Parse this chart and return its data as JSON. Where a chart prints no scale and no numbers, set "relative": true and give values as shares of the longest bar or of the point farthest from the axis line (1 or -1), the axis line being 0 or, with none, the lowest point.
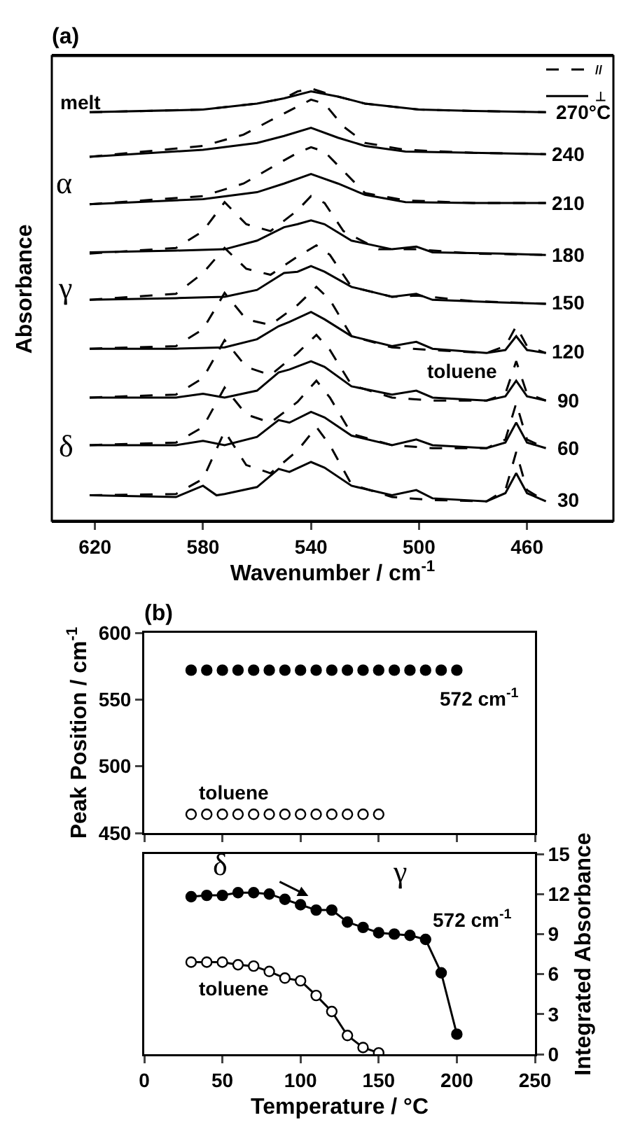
{
  "chart_data": [
    {
      "type": "line",
      "title": "(a)",
      "xlabel": "Wavenumber / cm$^{-1}$",
      "ylabel": "Absorbance",
      "relative": true,
      "xlim": [
        636,
        428
      ],
      "xticks": [
        620,
        580,
        540,
        500,
        460
      ],
      "legend": "top right",
      "grid": false,
      "series": [
        {
          "name": "//",
          "color": "#000000",
          "line_style": "dashed",
          "x": [
            622,
            580,
            560,
            550,
            545,
            540,
            535,
            530,
            520,
            500,
            480,
            453
          ],
          "values": [
            0.945,
            0.951,
            0.965,
            0.977,
            0.993,
            1.0,
            0.99,
            0.981,
            0.965,
            0.951,
            0.948,
            0.945
          ]
        },
        {
          "name": "⊥",
          "color": "#000000",
          "line_style": "solid",
          "x": [
            622,
            580,
            560,
            550,
            540,
            530,
            520,
            500,
            480,
            453
          ],
          "values": [
            0.945,
            0.951,
            0.965,
            0.977,
            0.993,
            0.981,
            0.965,
            0.951,
            0.948,
            0.945
          ]
        },
        {
          "color": "#000000",
          "line_style": "dashed",
          "x": [
            622,
            580,
            565,
            555,
            545,
            540,
            535,
            528,
            520,
            505,
            480,
            453
          ],
          "values": [
            0.842,
            0.867,
            0.893,
            0.926,
            0.958,
            0.974,
            0.965,
            0.912,
            0.874,
            0.858,
            0.851,
            0.848
          ]
        },
        {
          "color": "#000000",
          "line_style": "solid",
          "x": [
            622,
            580,
            560,
            550,
            540,
            530,
            520,
            505,
            480,
            453
          ],
          "values": [
            0.842,
            0.858,
            0.874,
            0.89,
            0.909,
            0.886,
            0.867,
            0.854,
            0.851,
            0.848
          ]
        },
        {
          "color": "#000000",
          "line_style": "dashed",
          "x": [
            622,
            580,
            565,
            555,
            545,
            540,
            535,
            528,
            520,
            505,
            480,
            453
          ],
          "values": [
            0.732,
            0.751,
            0.78,
            0.816,
            0.851,
            0.864,
            0.854,
            0.809,
            0.758,
            0.741,
            0.735,
            0.735
          ]
        },
        {
          "color": "#000000",
          "line_style": "solid",
          "x": [
            622,
            580,
            560,
            550,
            540,
            530,
            520,
            505,
            480,
            453
          ],
          "values": [
            0.732,
            0.744,
            0.76,
            0.78,
            0.802,
            0.78,
            0.754,
            0.737,
            0.735,
            0.735
          ]
        },
        {
          "color": "#000000",
          "line_style": "dashed",
          "x": [
            622,
            590,
            580,
            572,
            564,
            555,
            545,
            540,
            535,
            528,
            515,
            501,
            480,
            453
          ],
          "values": [
            0.618,
            0.631,
            0.67,
            0.737,
            0.686,
            0.67,
            0.718,
            0.751,
            0.735,
            0.67,
            0.628,
            0.628,
            0.618,
            0.615
          ]
        },
        {
          "color": "#000000",
          "line_style": "solid",
          "x": [
            622,
            590,
            572,
            560,
            550,
            545,
            540,
            535,
            525,
            510,
            501,
            495,
            470,
            453
          ],
          "values": [
            0.621,
            0.625,
            0.628,
            0.648,
            0.679,
            0.686,
            0.695,
            0.686,
            0.648,
            0.628,
            0.634,
            0.621,
            0.618,
            0.615
          ]
        },
        {
          "color": "#000000",
          "line_style": "dashed",
          "x": [
            622,
            590,
            580,
            572,
            564,
            555,
            545,
            538,
            533,
            525,
            510,
            501,
            480,
            453
          ],
          "values": [
            0.511,
            0.525,
            0.573,
            0.631,
            0.583,
            0.569,
            0.611,
            0.637,
            0.615,
            0.541,
            0.518,
            0.521,
            0.508,
            0.502
          ]
        },
        {
          "color": "#000000",
          "line_style": "solid",
          "x": [
            622,
            590,
            572,
            560,
            550,
            545,
            540,
            535,
            525,
            510,
            501,
            495,
            470,
            453
          ],
          "values": [
            0.511,
            0.515,
            0.518,
            0.534,
            0.573,
            0.576,
            0.589,
            0.576,
            0.541,
            0.518,
            0.525,
            0.511,
            0.505,
            0.502
          ]
        },
        {
          "color": "#000000",
          "line_style": "dashed",
          "x": [
            622,
            590,
            580,
            572,
            564,
            555,
            545,
            538,
            533,
            525,
            510,
            495,
            475,
            468,
            464,
            460,
            453
          ],
          "values": [
            0.398,
            0.404,
            0.443,
            0.527,
            0.466,
            0.453,
            0.499,
            0.541,
            0.511,
            0.427,
            0.401,
            0.395,
            0.388,
            0.404,
            0.45,
            0.404,
            0.388
          ]
        },
        {
          "color": "#000000",
          "line_style": "solid",
          "x": [
            622,
            590,
            572,
            560,
            552,
            548,
            540,
            535,
            525,
            510,
            501,
            495,
            475,
            468,
            464,
            460,
            453
          ],
          "values": [
            0.398,
            0.398,
            0.401,
            0.42,
            0.45,
            0.46,
            0.483,
            0.466,
            0.427,
            0.404,
            0.414,
            0.398,
            0.388,
            0.395,
            0.427,
            0.395,
            0.388
          ]
        },
        {
          "color": "#000000",
          "line_style": "dashed",
          "x": [
            622,
            590,
            580,
            572,
            564,
            555,
            545,
            538,
            533,
            525,
            510,
            495,
            475,
            468,
            464,
            460,
            453
          ],
          "values": [
            0.285,
            0.292,
            0.33,
            0.418,
            0.356,
            0.337,
            0.388,
            0.43,
            0.395,
            0.314,
            0.285,
            0.278,
            0.278,
            0.294,
            0.369,
            0.294,
            0.278
          ]
        },
        {
          "color": "#000000",
          "line_style": "solid",
          "x": [
            622,
            590,
            580,
            572,
            560,
            552,
            548,
            540,
            535,
            525,
            510,
            501,
            495,
            475,
            468,
            464,
            460,
            453
          ],
          "values": [
            0.285,
            0.285,
            0.294,
            0.285,
            0.301,
            0.343,
            0.35,
            0.369,
            0.356,
            0.311,
            0.292,
            0.301,
            0.285,
            0.278,
            0.288,
            0.324,
            0.288,
            0.278
          ]
        },
        {
          "color": "#000000",
          "line_style": "dashed",
          "x": [
            622,
            590,
            580,
            572,
            564,
            555,
            545,
            538,
            533,
            525,
            510,
            495,
            475,
            468,
            464,
            460,
            453
          ],
          "values": [
            0.175,
            0.181,
            0.217,
            0.308,
            0.246,
            0.227,
            0.275,
            0.324,
            0.285,
            0.201,
            0.175,
            0.168,
            0.168,
            0.188,
            0.272,
            0.188,
            0.168
          ]
        },
        {
          "color": "#000000",
          "line_style": "solid",
          "x": [
            622,
            590,
            580,
            572,
            560,
            552,
            548,
            540,
            535,
            525,
            510,
            501,
            495,
            475,
            468,
            464,
            460,
            453
          ],
          "values": [
            0.175,
            0.175,
            0.185,
            0.175,
            0.194,
            0.233,
            0.227,
            0.252,
            0.239,
            0.197,
            0.175,
            0.188,
            0.175,
            0.168,
            0.181,
            0.227,
            0.181,
            0.168
          ]
        },
        {
          "color": "#000000",
          "line_style": "dashed",
          "x": [
            622,
            590,
            580,
            572,
            564,
            555,
            545,
            538,
            533,
            525,
            510,
            495,
            475,
            468,
            464,
            460,
            453
          ],
          "values": [
            0.059,
            0.062,
            0.097,
            0.207,
            0.129,
            0.11,
            0.162,
            0.217,
            0.175,
            0.084,
            0.055,
            0.048,
            0.045,
            0.071,
            0.159,
            0.071,
            0.045
          ]
        },
        {
          "color": "#000000",
          "line_style": "solid",
          "x": [
            622,
            590,
            580,
            575,
            572,
            560,
            552,
            548,
            540,
            535,
            525,
            510,
            501,
            495,
            475,
            468,
            464,
            460,
            453
          ],
          "values": [
            0.059,
            0.055,
            0.081,
            0.059,
            0.062,
            0.078,
            0.12,
            0.113,
            0.136,
            0.123,
            0.081,
            0.059,
            0.071,
            0.052,
            0.045,
            0.064,
            0.11,
            0.064,
            0.045
          ]
        }
      ],
      "annotations": [
        "270°C",
        "240",
        "210",
        "180",
        "150",
        "120",
        "90",
        "60",
        "30",
        "melt",
        "α",
        "γ",
        "δ",
        "toluene"
      ]
    },
    {
      "type": "scatter",
      "title": "(b)",
      "ylabel": "Peak Position / cm$^{-1}$",
      "xlim": [
        0,
        250
      ],
      "xticks": [
        0,
        50,
        100,
        150,
        200,
        250
      ],
      "ylim": [
        450,
        600
      ],
      "yticks": [
        450,
        500,
        550,
        600
      ],
      "tick_labels": "y",
      "marker": "circle",
      "grid": false,
      "series": [
        {
          "color": "#000000",
          "x": [
            30,
            40,
            50,
            60,
            70,
            80,
            90,
            100,
            110,
            120,
            130,
            140,
            150,
            160,
            170,
            180,
            190,
            200
          ],
          "values": [
            572,
            572,
            572,
            572,
            572,
            572,
            572,
            572,
            572,
            572,
            572,
            572,
            572,
            572,
            572,
            572,
            572,
            572
          ]
        },
        {
          "color": "#ffffff",
          "x": [
            30,
            40,
            50,
            60,
            70,
            80,
            90,
            100,
            110,
            120,
            130,
            140,
            150
          ],
          "values": [
            464,
            464,
            464,
            464,
            464,
            464,
            464,
            464,
            464,
            464,
            464,
            464,
            464
          ]
        }
      ],
      "annotations": [
        "572 cm$^{-1}$",
        "toluene"
      ]
    },
    {
      "type": "line",
      "xlabel": "Temperature / °C",
      "y2label": "Integrated Absorbance",
      "xlim": [
        0,
        250
      ],
      "xticks": [
        0,
        50,
        100,
        150,
        200,
        250
      ],
      "y2lim": [
        0,
        15
      ],
      "y2ticks": [
        0,
        3,
        6,
        9,
        12,
        15
      ],
      "marker": "circle",
      "grid": false,
      "series": [
        {
          "axis": "y2",
          "color": "#000000",
          "x": [
            30,
            40,
            50,
            60,
            70,
            80,
            90,
            100,
            110,
            120,
            130,
            140,
            150,
            160,
            170,
            180,
            190,
            200
          ],
          "values": [
            11.8,
            11.9,
            11.9,
            12.1,
            12.1,
            12.0,
            11.6,
            11.2,
            10.8,
            10.8,
            9.9,
            9.5,
            9.1,
            9.0,
            8.9,
            8.6,
            6.1,
            1.5
          ]
        },
        {
          "axis": "y2",
          "color": "#ffffff",
          "x": [
            30,
            40,
            50,
            60,
            70,
            80,
            90,
            100,
            110,
            120,
            130,
            140,
            150
          ],
          "values": [
            6.9,
            6.9,
            6.9,
            6.7,
            6.6,
            6.2,
            5.7,
            5.5,
            4.4,
            3.2,
            1.4,
            0.5,
            0.1
          ]
        }
      ],
      "annotations": [
        "δ",
        "γ",
        "572 cm$^{-1}$",
        "toluene"
      ]
    }
  ]
}
